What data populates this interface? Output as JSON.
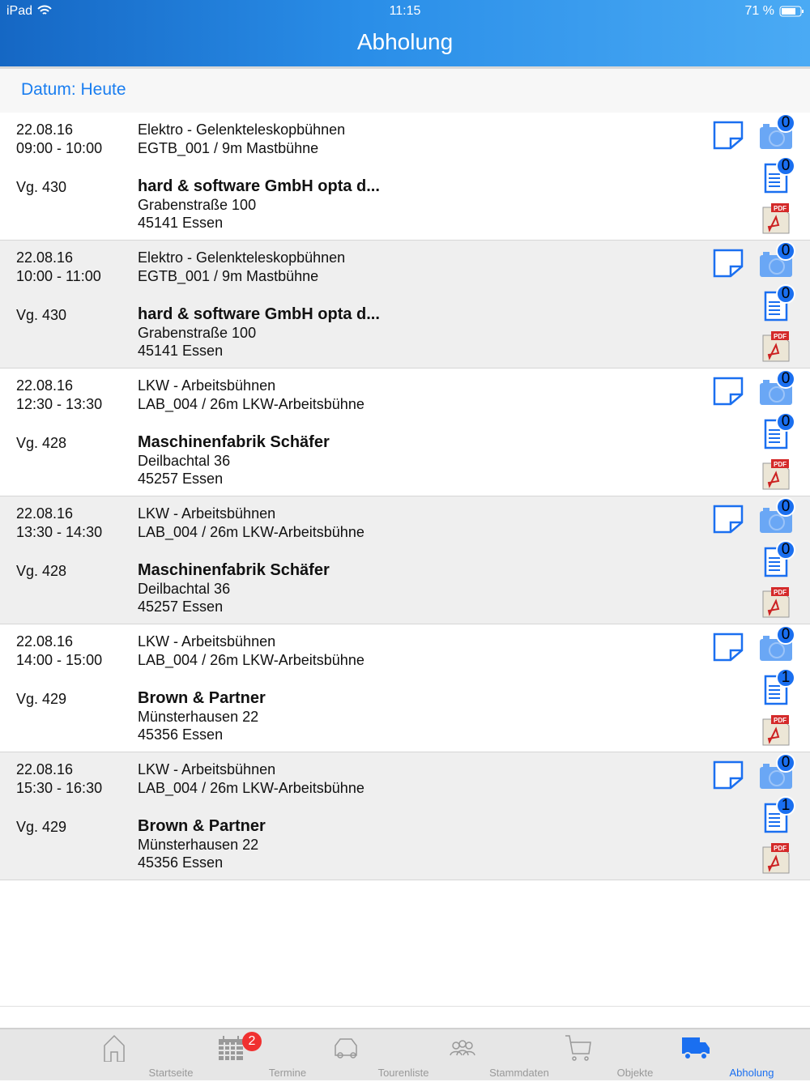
{
  "status_bar": {
    "device": "iPad",
    "time": "11:15",
    "battery": "71 %"
  },
  "header": {
    "title": "Abholung"
  },
  "filter": {
    "label": "Datum: Heute"
  },
  "colors": {
    "accent": "#1a6ff0",
    "badge": "#1a6ff0",
    "tab_badge": "#f03030"
  },
  "rows": [
    {
      "date": "22.08.16",
      "time": "09:00 - 10:00",
      "vg": "Vg. 430",
      "category": "Elektro - Gelenkteleskopbühnen",
      "machine": "EGTB_001 / 9m Mastbühne",
      "customer": "hard & software GmbH opta d...",
      "street": "Grabenstraße 100",
      "city": "45141 Essen",
      "photo_count": "0",
      "doc_count": "0"
    },
    {
      "date": "22.08.16",
      "time": "10:00 - 11:00",
      "vg": "Vg. 430",
      "category": "Elektro - Gelenkteleskopbühnen",
      "machine": "EGTB_001 / 9m Mastbühne",
      "customer": "hard & software GmbH opta d...",
      "street": "Grabenstraße 100",
      "city": "45141 Essen",
      "photo_count": "0",
      "doc_count": "0"
    },
    {
      "date": "22.08.16",
      "time": "12:30 - 13:30",
      "vg": "Vg. 428",
      "category": "LKW - Arbeitsbühnen",
      "machine": "LAB_004 / 26m LKW-Arbeitsbühne",
      "customer": "Maschinenfabrik Schäfer",
      "street": "Deilbachtal 36",
      "city": "45257 Essen",
      "photo_count": "0",
      "doc_count": "0"
    },
    {
      "date": "22.08.16",
      "time": "13:30 - 14:30",
      "vg": "Vg. 428",
      "category": "LKW - Arbeitsbühnen",
      "machine": "LAB_004 / 26m LKW-Arbeitsbühne",
      "customer": "Maschinenfabrik Schäfer",
      "street": "Deilbachtal 36",
      "city": "45257 Essen",
      "photo_count": "0",
      "doc_count": "0"
    },
    {
      "date": "22.08.16",
      "time": "14:00 - 15:00",
      "vg": "Vg. 429",
      "category": "LKW - Arbeitsbühnen",
      "machine": "LAB_004 / 26m LKW-Arbeitsbühne",
      "customer": "Brown & Partner",
      "street": "Münsterhausen 22",
      "city": "45356 Essen",
      "photo_count": "0",
      "doc_count": "1"
    },
    {
      "date": "22.08.16",
      "time": "15:30 - 16:30",
      "vg": "Vg. 429",
      "category": "LKW - Arbeitsbühnen",
      "machine": "LAB_004 / 26m LKW-Arbeitsbühne",
      "customer": "Brown & Partner",
      "street": "Münsterhausen 22",
      "city": "45356 Essen",
      "photo_count": "0",
      "doc_count": "1"
    }
  ],
  "pdf_label": "PDF",
  "tabs": [
    {
      "label": "Startseite",
      "icon": "home-icon"
    },
    {
      "label": "Termine",
      "icon": "calendar-icon",
      "badge": "2"
    },
    {
      "label": "Tourenliste",
      "icon": "car-icon"
    },
    {
      "label": "Stammdaten",
      "icon": "people-icon"
    },
    {
      "label": "Objekte",
      "icon": "cart-icon"
    },
    {
      "label": "Abholung",
      "icon": "truck-icon",
      "active": true
    }
  ]
}
